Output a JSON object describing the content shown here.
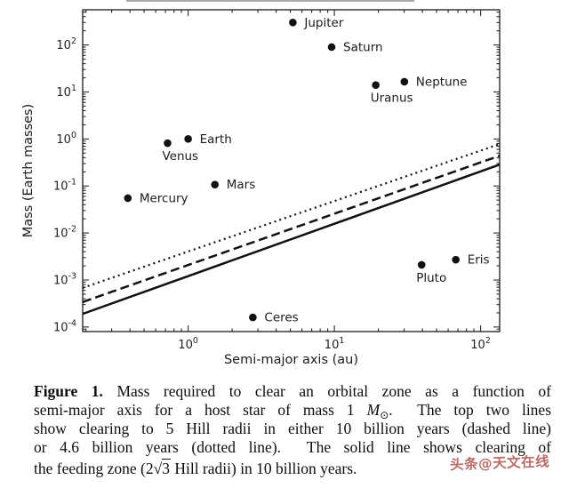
{
  "chart_data": {
    "type": "scatter",
    "title": "",
    "xlabel": "Semi-major axis (au)",
    "ylabel": "Mass (Earth masses)",
    "xscale": "log",
    "yscale": "log",
    "xlim": [
      0.19,
      135
    ],
    "ylim": [
      8e-05,
      560
    ],
    "grid": false,
    "legend": "none (line styles explained in caption)",
    "x_tick_exponents": [
      0,
      1,
      2
    ],
    "y_tick_exponents": [
      2,
      1,
      0,
      -1,
      -2,
      -3,
      -4
    ],
    "axis_color": "#2a2a2a",
    "point_color": "#111111",
    "points": [
      {
        "label": "Mercury",
        "a_au": 0.387,
        "mass_earth": 0.055,
        "label_side": "right"
      },
      {
        "label": "Venus",
        "a_au": 0.723,
        "mass_earth": 0.815,
        "label_side": "below"
      },
      {
        "label": "Earth",
        "a_au": 1.0,
        "mass_earth": 1.0,
        "label_side": "right"
      },
      {
        "label": "Mars",
        "a_au": 1.524,
        "mass_earth": 0.107,
        "label_side": "right"
      },
      {
        "label": "Ceres",
        "a_au": 2.77,
        "mass_earth": 0.00016,
        "label_side": "right"
      },
      {
        "label": "Jupiter",
        "a_au": 5.2,
        "mass_earth": 300,
        "label_side": "right"
      },
      {
        "label": "Saturn",
        "a_au": 9.58,
        "mass_earth": 90,
        "label_side": "right"
      },
      {
        "label": "Uranus",
        "a_au": 19.2,
        "mass_earth": 14.0,
        "label_side": "below"
      },
      {
        "label": "Neptune",
        "a_au": 30.1,
        "mass_earth": 16.5,
        "label_side": "right"
      },
      {
        "label": "Pluto",
        "a_au": 39.5,
        "mass_earth": 0.0021,
        "label_side": "below"
      },
      {
        "label": "Eris",
        "a_au": 67.7,
        "mass_earth": 0.0027,
        "label_side": "right"
      }
    ],
    "lines": [
      {
        "name": "clearing to 5 Hill radii in 4.6 billion years",
        "style": "dotted",
        "x": [
          0.19,
          135
        ],
        "y": [
          0.00068,
          0.78
        ]
      },
      {
        "name": "clearing to 5 Hill radii in 10 billion years",
        "style": "dashed",
        "x": [
          0.19,
          135
        ],
        "y": [
          0.00034,
          0.44
        ]
      },
      {
        "name": "clearing of feeding zone (2*sqrt(3) Hill radii) in 10 billion years",
        "style": "solid",
        "x": [
          0.19,
          135
        ],
        "y": [
          0.00019,
          0.285
        ]
      }
    ]
  },
  "caption": {
    "fig_label": "Figure 1.",
    "line1_rest": "Mass required to clear an orbital zone as a function of",
    "line2_pre": "semi-major axis for a host star of mass 1 ",
    "msun_letter": "M",
    "msun_symbol": "⊙",
    "line2_post": ".  The top two lines",
    "line3": "show clearing to 5 Hill radii in either 10 billion years (dashed line)",
    "line4": "or 4.6 billion years (dotted line).  The solid line shows clearing of",
    "line5_pre": "the feeding zone (2",
    "sqrt_symbol": "√",
    "sqrt_arg": "3",
    "line5_post": " Hill radii) in 10 billion years."
  },
  "watermark": {
    "text": "头条@天文在线",
    "color": "#b5605b"
  }
}
